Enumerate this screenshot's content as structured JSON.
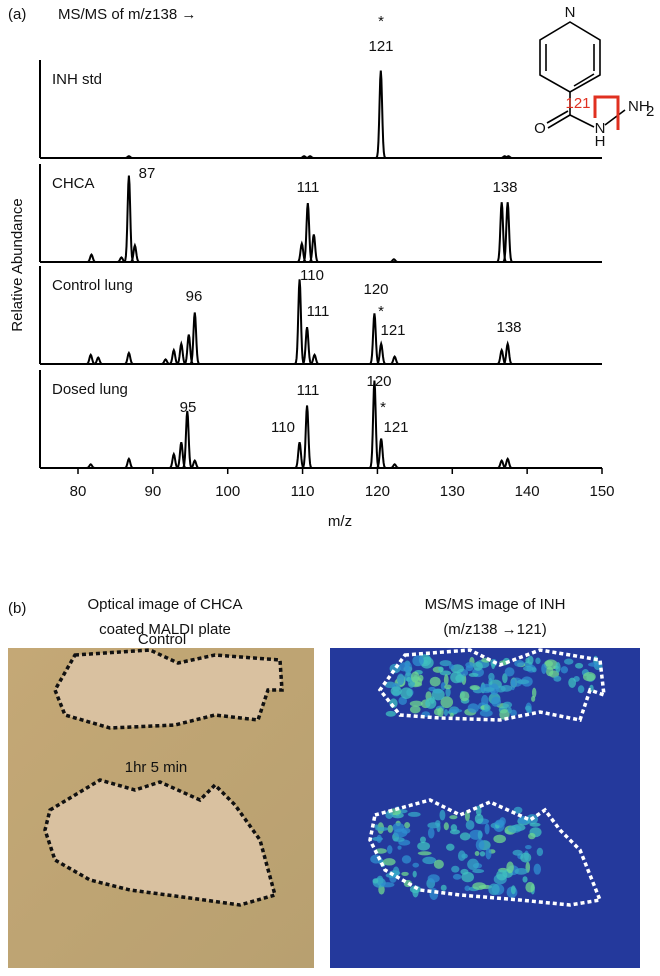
{
  "chart_data": {
    "type": "spectrum",
    "panel_label": "(a)",
    "title": "MS/MS of m/z138 →",
    "xlabel": "m/z",
    "ylabel": "Relative Abundance",
    "xlim": [
      75,
      150
    ],
    "xticks": [
      80,
      90,
      100,
      110,
      120,
      130,
      140,
      150
    ],
    "ylim": [
      0,
      100
    ],
    "color": "#000000",
    "series": [
      {
        "name": "INH std",
        "mz": [
          86.8,
          110.2,
          111,
          120.45,
          137,
          137.5
        ],
        "values": [
          2,
          2,
          2,
          95,
          2,
          2
        ],
        "annotations": [
          {
            "text": "*"
          },
          {
            "text": "121"
          }
        ]
      },
      {
        "name": "CHCA",
        "mz": [
          81.8,
          85.8,
          86.8,
          87.6,
          109.9,
          110.7,
          111.5,
          122.2,
          136.6,
          137.4
        ],
        "values": [
          8,
          5,
          94,
          18,
          20,
          64,
          30,
          3,
          65,
          65
        ],
        "annotations": [
          {
            "text": "87"
          },
          {
            "text": "111"
          },
          {
            "text": "138"
          }
        ]
      },
      {
        "name": "Control lung",
        "mz": [
          81.7,
          82.7,
          86.8,
          91.7,
          92.8,
          93.8,
          94.8,
          95.6,
          109.6,
          110.6,
          111.6,
          119.6,
          120.5,
          122.3,
          136.6,
          137.4
        ],
        "values": [
          10,
          7,
          12,
          5,
          15,
          22,
          32,
          56,
          92,
          40,
          10,
          55,
          22,
          8,
          15,
          22
        ],
        "annotations": [
          {
            "text": "96"
          },
          {
            "text": "110"
          },
          {
            "text": "111"
          },
          {
            "text": "120"
          },
          {
            "text": "*"
          },
          {
            "text": "121"
          },
          {
            "text": "138"
          }
        ]
      },
      {
        "name": "Dosed lung",
        "mz": [
          81.7,
          86.8,
          92.8,
          93.8,
          94.6,
          95.6,
          109.6,
          110.6,
          119.6,
          120.5,
          122.3,
          136.6,
          137.4
        ],
        "values": [
          4,
          10,
          15,
          28,
          62,
          8,
          28,
          68,
          95,
          32,
          4,
          8,
          10
        ],
        "annotations": [
          {
            "text": "95"
          },
          {
            "text": "111"
          },
          {
            "text": "110"
          },
          {
            "text": "120"
          },
          {
            "text": "*"
          },
          {
            "text": "121"
          }
        ]
      }
    ]
  },
  "structure": {
    "ring_atom": "N",
    "bond_label": "121",
    "oxygen": "O",
    "amide_n": "N",
    "amide_h": "H",
    "amine": "NH",
    "amine_sub": "2"
  },
  "panel_b": {
    "label": "(b)",
    "left": {
      "title": [
        "Optical image of CHCA",
        "coated MALDI plate"
      ],
      "labels": [
        "Control",
        "1hr 5 min"
      ]
    },
    "right": {
      "title": [
        "MS/MS image of INH",
        "(m/z138  →121)"
      ]
    }
  }
}
